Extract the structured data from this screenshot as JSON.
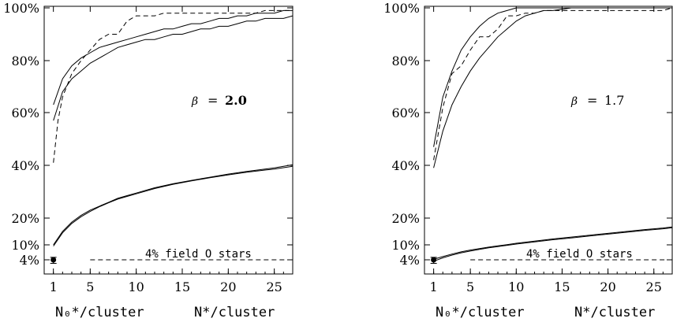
{
  "chart_data": [
    {
      "type": "line",
      "title": "",
      "xlabel_left": "N₀*/cluster",
      "xlabel_right": "N*/cluster",
      "xlim": [
        0,
        27
      ],
      "ylim_percent": [
        0,
        100
      ],
      "x_ticks": [
        "1",
        "5",
        "10",
        "15",
        "20",
        "25"
      ],
      "y_ticks": [
        "4%",
        "10%",
        "20%",
        "40%",
        "60%",
        "80%",
        "100%"
      ],
      "y_tick_values": [
        4,
        10,
        20,
        40,
        60,
        80,
        100
      ],
      "annotation_beta_symbol": "β",
      "annotation_beta_eq": "=",
      "annotation_beta_value": "2.0",
      "annotation_field": "4% field O stars",
      "field_line_y": 4,
      "field_line_x": [
        5,
        27
      ],
      "point": {
        "x": 1,
        "y": 4,
        "err": 1
      },
      "series": [
        {
          "style": "solid",
          "x": [
            1,
            2,
            3,
            4,
            5,
            6,
            7,
            8,
            9,
            10,
            11,
            12,
            13,
            14,
            15,
            16,
            17,
            18,
            19,
            20,
            21,
            22,
            23,
            24,
            25,
            26,
            27
          ],
          "y": [
            63,
            73,
            78,
            81,
            83,
            85,
            86,
            87,
            88,
            89,
            90,
            91,
            92,
            92,
            93,
            94,
            94,
            95,
            96,
            96,
            97,
            97,
            98,
            98,
            98,
            99,
            99
          ]
        },
        {
          "style": "solid",
          "x": [
            1,
            2,
            3,
            4,
            5,
            6,
            7,
            8,
            9,
            10,
            11,
            12,
            13,
            14,
            15,
            16,
            17,
            18,
            19,
            20,
            21,
            22,
            23,
            24,
            25,
            26,
            27
          ],
          "y": [
            57,
            68,
            73,
            76,
            79,
            81,
            83,
            85,
            86,
            87,
            88,
            88,
            89,
            90,
            90,
            91,
            92,
            92,
            93,
            93,
            94,
            95,
            95,
            96,
            96,
            96,
            97
          ]
        },
        {
          "style": "dashed",
          "x": [
            1,
            1.5,
            2,
            3,
            4,
            5,
            6,
            7,
            8,
            9,
            10,
            11,
            12,
            13,
            14,
            15,
            16,
            17,
            18,
            19,
            20,
            21,
            22,
            23,
            24,
            25,
            26,
            27
          ],
          "y": [
            41,
            57,
            66,
            75,
            80,
            84,
            88,
            90,
            90,
            95,
            97,
            97,
            97,
            98,
            98,
            98,
            98,
            98,
            98,
            98,
            98,
            98,
            98,
            98,
            99,
            99,
            99,
            99
          ]
        },
        {
          "style": "solid",
          "x": [
            1,
            2,
            3,
            4,
            5,
            6,
            7,
            8,
            9,
            10,
            12,
            14,
            16,
            18,
            20,
            22,
            24,
            25,
            26,
            27
          ],
          "y": [
            10,
            15,
            18.5,
            21,
            23,
            24.5,
            26,
            27.5,
            28.5,
            29.5,
            31.5,
            33,
            34.3,
            35.5,
            36.7,
            37.7,
            38.6,
            39,
            39.6,
            40.2
          ]
        },
        {
          "style": "solid",
          "x": [
            1,
            2,
            3,
            4,
            5,
            6,
            7,
            8,
            9,
            10,
            12,
            14,
            16,
            18,
            20,
            22,
            24,
            25,
            26,
            27
          ],
          "y": [
            9.5,
            14.5,
            18,
            20.5,
            22.5,
            24.3,
            25.8,
            27.2,
            28.2,
            29.2,
            31.2,
            32.8,
            34.1,
            35.3,
            36.4,
            37.4,
            38.2,
            38.6,
            39.1,
            39.6
          ]
        }
      ]
    },
    {
      "type": "line",
      "title": "",
      "xlabel_left": "N₀*/cluster",
      "xlabel_right": "N*/cluster",
      "xlim": [
        0,
        27
      ],
      "ylim_percent": [
        0,
        100
      ],
      "x_ticks": [
        "1",
        "5",
        "10",
        "15",
        "20",
        "25"
      ],
      "y_ticks": [
        "4%",
        "10%",
        "20%",
        "40%",
        "60%",
        "80%",
        "100%"
      ],
      "y_tick_values": [
        4,
        10,
        20,
        40,
        60,
        80,
        100
      ],
      "annotation_beta_symbol": "β",
      "annotation_beta_eq": "=",
      "annotation_beta_value": "1.7",
      "annotation_field": "4% field O stars",
      "field_line_y": 4,
      "field_line_x": [
        5,
        27
      ],
      "point": {
        "x": 1,
        "y": 4,
        "err": 1
      },
      "series": [
        {
          "style": "solid",
          "x": [
            1,
            2,
            3,
            4,
            5,
            6,
            7,
            8,
            9,
            10,
            11,
            12,
            13,
            14,
            15,
            16,
            17,
            18,
            19,
            20,
            21,
            22,
            23,
            24,
            25,
            26,
            27
          ],
          "y": [
            47,
            66,
            76,
            84,
            89,
            93,
            96,
            98,
            99,
            100,
            100,
            100,
            100,
            100,
            100,
            100,
            100,
            100,
            100,
            100,
            100,
            100,
            100,
            100,
            100,
            100,
            100
          ]
        },
        {
          "style": "solid",
          "x": [
            1,
            2,
            3,
            4,
            5,
            6,
            7,
            8,
            9,
            10,
            11,
            12,
            13,
            14,
            15,
            16,
            17,
            18,
            19,
            20,
            21,
            22,
            23,
            24,
            25,
            26,
            27
          ],
          "y": [
            39,
            53,
            63,
            70,
            76,
            81,
            85,
            89,
            92,
            95,
            97,
            98,
            99,
            99,
            99.5,
            100,
            100,
            100,
            100,
            100,
            100,
            100,
            100,
            100,
            100,
            100,
            100
          ]
        },
        {
          "style": "dashed",
          "x": [
            1,
            2,
            3,
            4,
            5,
            6,
            7,
            8,
            9,
            10,
            11,
            12,
            13,
            14,
            15,
            16,
            17,
            18,
            19,
            20,
            21,
            22,
            23,
            24,
            25,
            26,
            27
          ],
          "y": [
            42,
            62,
            75,
            78,
            84,
            89,
            89,
            92,
            97,
            97,
            98,
            98,
            99,
            99,
            99,
            99,
            99,
            99,
            99,
            99,
            99,
            99,
            99,
            99,
            99,
            99,
            100
          ]
        },
        {
          "style": "solid",
          "x": [
            1,
            2,
            3,
            4,
            5,
            6,
            7,
            8,
            9,
            10,
            12,
            14,
            16,
            18,
            20,
            22,
            24,
            25,
            26,
            27
          ],
          "y": [
            4.2,
            5.3,
            6.3,
            7.2,
            7.9,
            8.5,
            9.1,
            9.6,
            10.1,
            10.6,
            11.4,
            12.2,
            12.9,
            13.6,
            14.3,
            15,
            15.7,
            16,
            16.3,
            16.7
          ]
        },
        {
          "style": "solid",
          "x": [
            1,
            2,
            3,
            4,
            5,
            6,
            7,
            8,
            9,
            10,
            12,
            14,
            16,
            18,
            20,
            22,
            24,
            25,
            26,
            27
          ],
          "y": [
            3.6,
            4.8,
            5.9,
            6.8,
            7.5,
            8.2,
            8.8,
            9.3,
            9.8,
            10.3,
            11.1,
            11.9,
            12.6,
            13.3,
            14,
            14.7,
            15.4,
            15.7,
            16,
            16.4
          ]
        }
      ]
    }
  ]
}
